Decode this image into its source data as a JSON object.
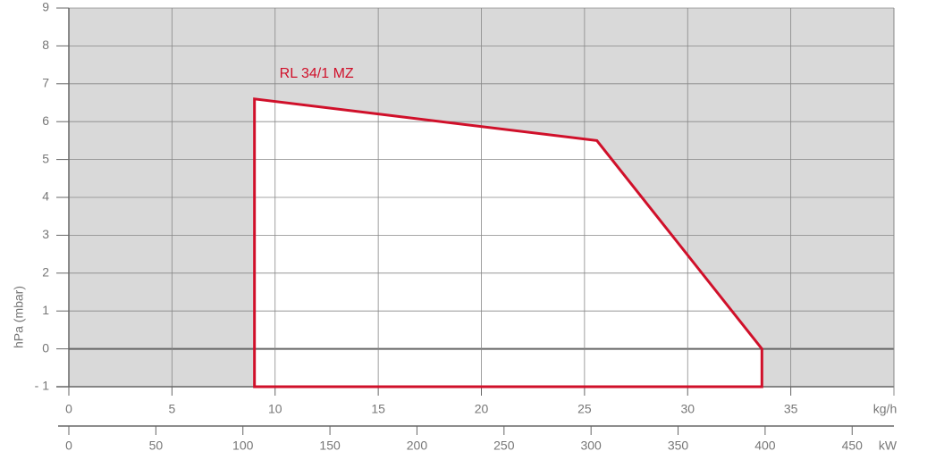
{
  "chart_data": {
    "type": "area",
    "ylabel": "hPa (mbar)",
    "series": [
      {
        "name": "RL 34/1 MZ",
        "color": "#d0102a",
        "x": [
          9,
          9,
          25.6,
          33.6,
          33.6
        ],
        "values": [
          -1,
          6.6,
          5.5,
          0,
          -1
        ]
      }
    ],
    "xlim": [
      0,
      40
    ],
    "xticks": [
      0,
      5,
      10,
      15,
      20,
      25,
      30,
      35
    ],
    "xlabel": "kg/h",
    "x2lim": [
      0,
      474
    ],
    "x2ticks": [
      0,
      50,
      100,
      150,
      200,
      250,
      300,
      350,
      400,
      450
    ],
    "x2label": "kW",
    "ylim": [
      -1,
      9
    ],
    "yticks": [
      {
        "value": -1,
        "label": "- 1"
      },
      0,
      1,
      2,
      3,
      4,
      5,
      6,
      7,
      8,
      9
    ],
    "grid": true
  }
}
